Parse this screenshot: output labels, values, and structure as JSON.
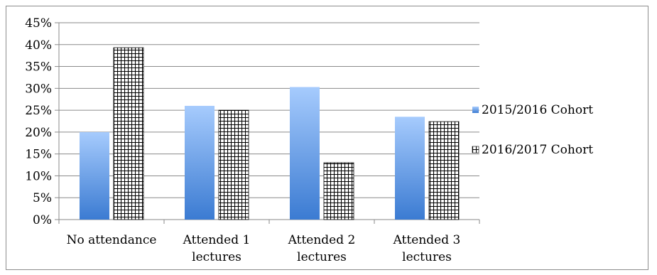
{
  "chart_data": {
    "type": "bar",
    "categories": [
      [
        "No attendance"
      ],
      [
        "Attended 1",
        "lectures"
      ],
      [
        "Attended 2",
        "lectures"
      ],
      [
        "Attended 3",
        "lectures"
      ]
    ],
    "series": [
      {
        "name": "2015/2016 Cohort",
        "values": [
          20,
          26,
          30.3,
          23.5
        ],
        "style": "gradient",
        "color_top": "#a6cbfd",
        "color_bottom": "#3b7bd2"
      },
      {
        "name": "2016/2017 Cohort",
        "values": [
          39.3,
          25,
          13,
          22.4
        ],
        "style": "grid-pattern",
        "color": "#000000"
      }
    ],
    "yticks": [
      "0%",
      "5%",
      "10%",
      "15%",
      "20%",
      "25%",
      "30%",
      "35%",
      "40%",
      "45%"
    ],
    "ylim": [
      0,
      45
    ],
    "ystep": 5,
    "grid": true,
    "legend": "right",
    "title": "",
    "xlabel": "",
    "ylabel": ""
  }
}
